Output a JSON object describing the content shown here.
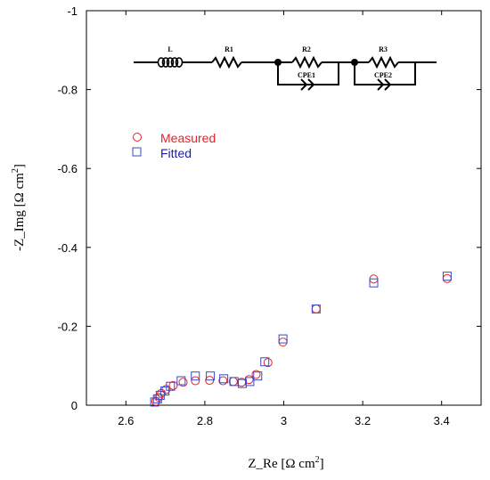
{
  "chart_data": {
    "type": "scatter",
    "xlabel": "Z_Re [Ω cm²]",
    "ylabel": "-Z_Img [Ω cm²]",
    "xlim": [
      2.5,
      3.5
    ],
    "ylim": [
      0,
      -1
    ],
    "xticks": [
      "2.6",
      "2.8",
      "3",
      "3.2",
      "3.4"
    ],
    "yticks": [
      "0",
      "-0.2",
      "-0.4",
      "-0.6",
      "-0.8",
      "-1"
    ],
    "xtick_values": [
      2.6,
      2.8,
      3.0,
      3.2,
      3.4
    ],
    "ytick_values": [
      0,
      -0.2,
      -0.4,
      -0.6,
      -0.8,
      -1
    ],
    "grid": false,
    "legend_position": "top-left",
    "series": [
      {
        "name": "Measured",
        "marker": "circle",
        "color": "#e8202a",
        "x": [
          2.676,
          2.683,
          2.69,
          2.702,
          2.72,
          2.745,
          2.776,
          2.812,
          2.846,
          2.872,
          2.893,
          2.912,
          2.93,
          2.96,
          2.998,
          3.082,
          3.228,
          3.414
        ],
        "y": [
          -0.01,
          -0.02,
          -0.03,
          -0.04,
          -0.05,
          -0.058,
          -0.062,
          -0.063,
          -0.062,
          -0.06,
          -0.058,
          -0.065,
          -0.078,
          -0.108,
          -0.16,
          -0.244,
          -0.32,
          -0.321
        ]
      },
      {
        "name": "Fitted",
        "marker": "square",
        "color": "#3848c8",
        "x": [
          2.673,
          2.68,
          2.687,
          2.699,
          2.713,
          2.74,
          2.776,
          2.814,
          2.848,
          2.874,
          2.895,
          2.914,
          2.934,
          2.952,
          2.998,
          3.082,
          3.228,
          3.414
        ],
        "y": [
          -0.008,
          -0.016,
          -0.025,
          -0.036,
          -0.048,
          -0.062,
          -0.074,
          -0.074,
          -0.067,
          -0.06,
          -0.055,
          -0.06,
          -0.074,
          -0.11,
          -0.168,
          -0.244,
          -0.31,
          -0.327
        ]
      }
    ],
    "circuit_labels": [
      "L",
      "R1",
      "R2",
      "CPE1",
      "R3",
      "CPE2"
    ]
  }
}
